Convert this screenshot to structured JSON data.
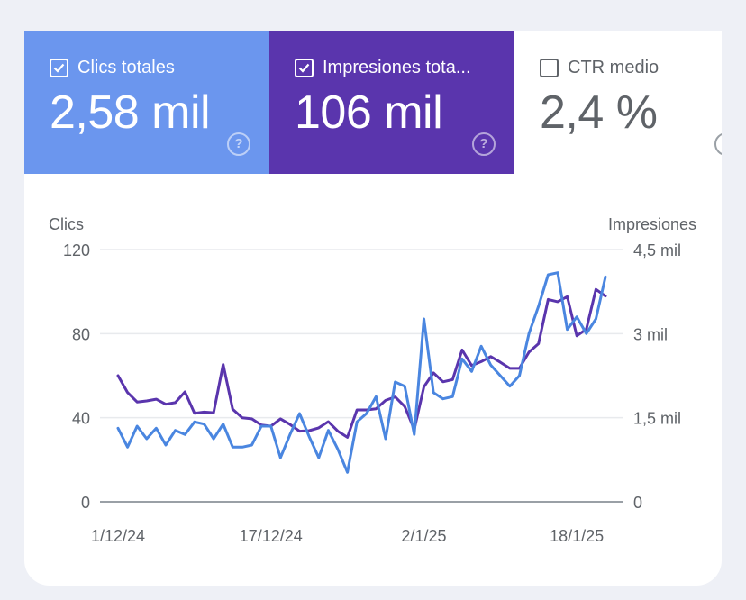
{
  "metrics": {
    "clicks": {
      "label": "Clics totales",
      "value": "2,58 mil",
      "checked": true,
      "color": "#6b96ee"
    },
    "impressions": {
      "label": "Impresiones tota...",
      "value": "106 mil",
      "checked": true,
      "color": "#5a35ad"
    },
    "ctr": {
      "label": "CTR medio",
      "value": "2,4 %",
      "checked": false
    }
  },
  "chart_data": {
    "type": "line",
    "left_axis_label": "Clics",
    "right_axis_label": "Impresiones",
    "left_ticks": [
      "0",
      "40",
      "80",
      "120"
    ],
    "left_tick_values": [
      0,
      40,
      80,
      120
    ],
    "right_ticks": [
      "0",
      "1,5 mil",
      "3 mil",
      "4,5 mil"
    ],
    "right_tick_values": [
      0,
      1500,
      3000,
      4500
    ],
    "ylim_left": [
      0,
      120
    ],
    "ylim_right": [
      0,
      4500
    ],
    "x_tick_labels": [
      "1/12/24",
      "17/12/24",
      "2/1/25",
      "18/1/25"
    ],
    "x_tick_indices": [
      0,
      16,
      32,
      48
    ],
    "series": [
      {
        "name": "Clics totales",
        "axis": "left",
        "color": "#4a86e0",
        "values": [
          35,
          26,
          36,
          30,
          35,
          27,
          34,
          32,
          38,
          37,
          30,
          37,
          26,
          26,
          27,
          36,
          36,
          21,
          32,
          42,
          31,
          21,
          34,
          25,
          14,
          38,
          42,
          50,
          30,
          57,
          55,
          32,
          87,
          52,
          49,
          50,
          68,
          62,
          74,
          65,
          60,
          55,
          60,
          80,
          93,
          108,
          109,
          82,
          88,
          80,
          87,
          107
        ]
      },
      {
        "name": "Impresiones totales",
        "axis": "right",
        "color": "#5a35ad",
        "values": [
          2250,
          1950,
          1780,
          1800,
          1830,
          1740,
          1770,
          1960,
          1580,
          1600,
          1590,
          2450,
          1650,
          1500,
          1480,
          1370,
          1350,
          1480,
          1380,
          1260,
          1270,
          1320,
          1430,
          1260,
          1150,
          1640,
          1640,
          1660,
          1810,
          1870,
          1700,
          1290,
          2050,
          2300,
          2140,
          2180,
          2710,
          2430,
          2500,
          2590,
          2490,
          2380,
          2380,
          2670,
          2820,
          3610,
          3570,
          3660,
          2960,
          3080,
          3790,
          3670
        ]
      }
    ]
  }
}
